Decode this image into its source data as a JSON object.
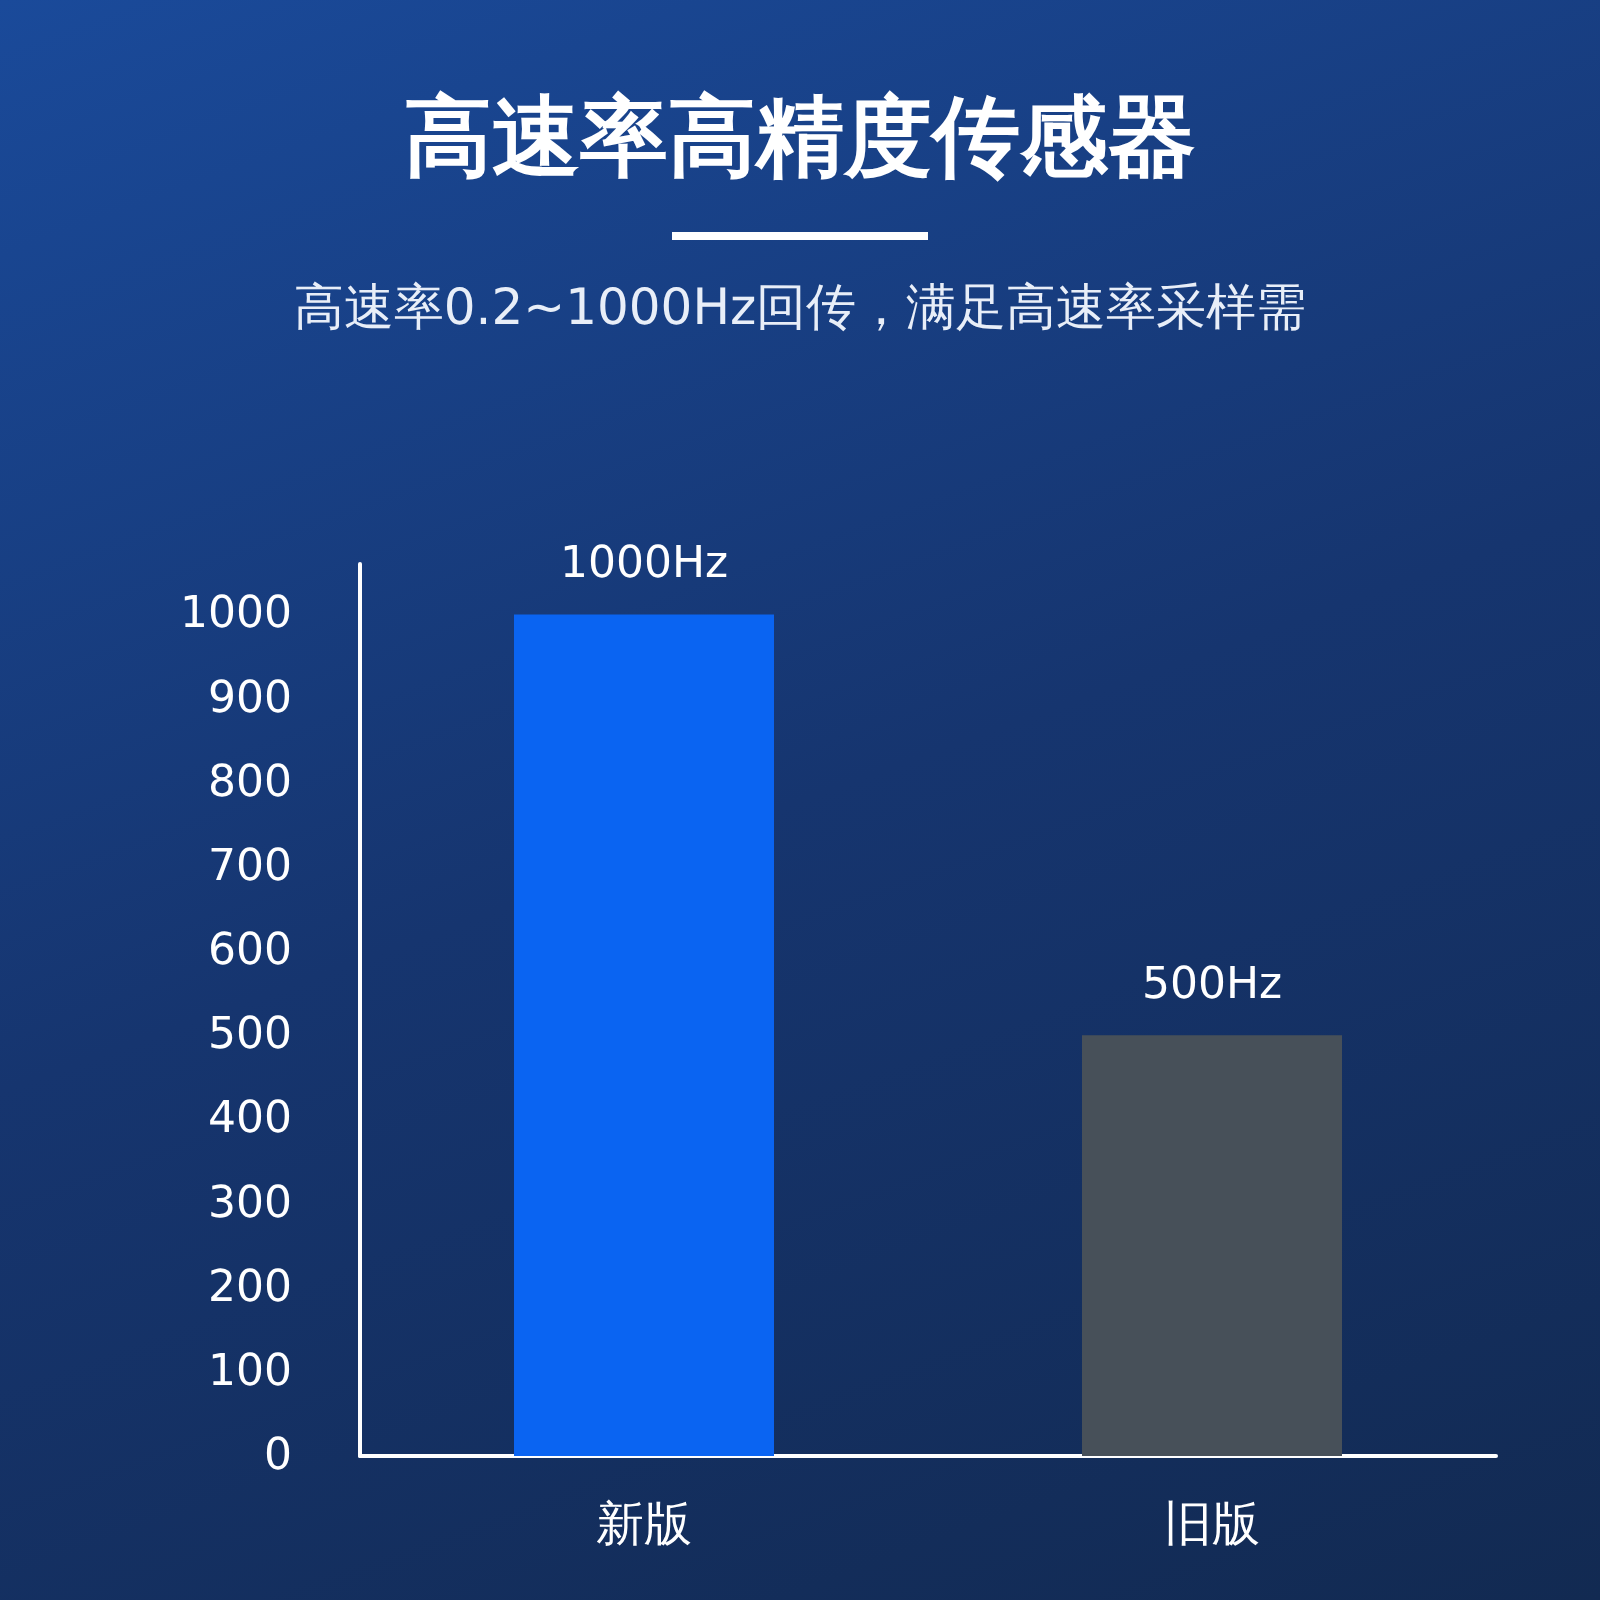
{
  "chart_data": {
    "type": "bar",
    "title": "高速率高精度传感器",
    "subtitle": "高速率0.2~1000Hz回传，满足高速率采样需",
    "categories": [
      "新版",
      "旧版"
    ],
    "values": [
      1000,
      500
    ],
    "colors": [
      "#0a64f2",
      "#475059"
    ],
    "value_labels": [
      "1000Hz",
      "500Hz"
    ],
    "ylim": [
      0,
      1060
    ],
    "yticks": [
      0,
      100,
      200,
      300,
      400,
      500,
      600,
      700,
      800,
      900,
      1000
    ],
    "grid": false
  }
}
